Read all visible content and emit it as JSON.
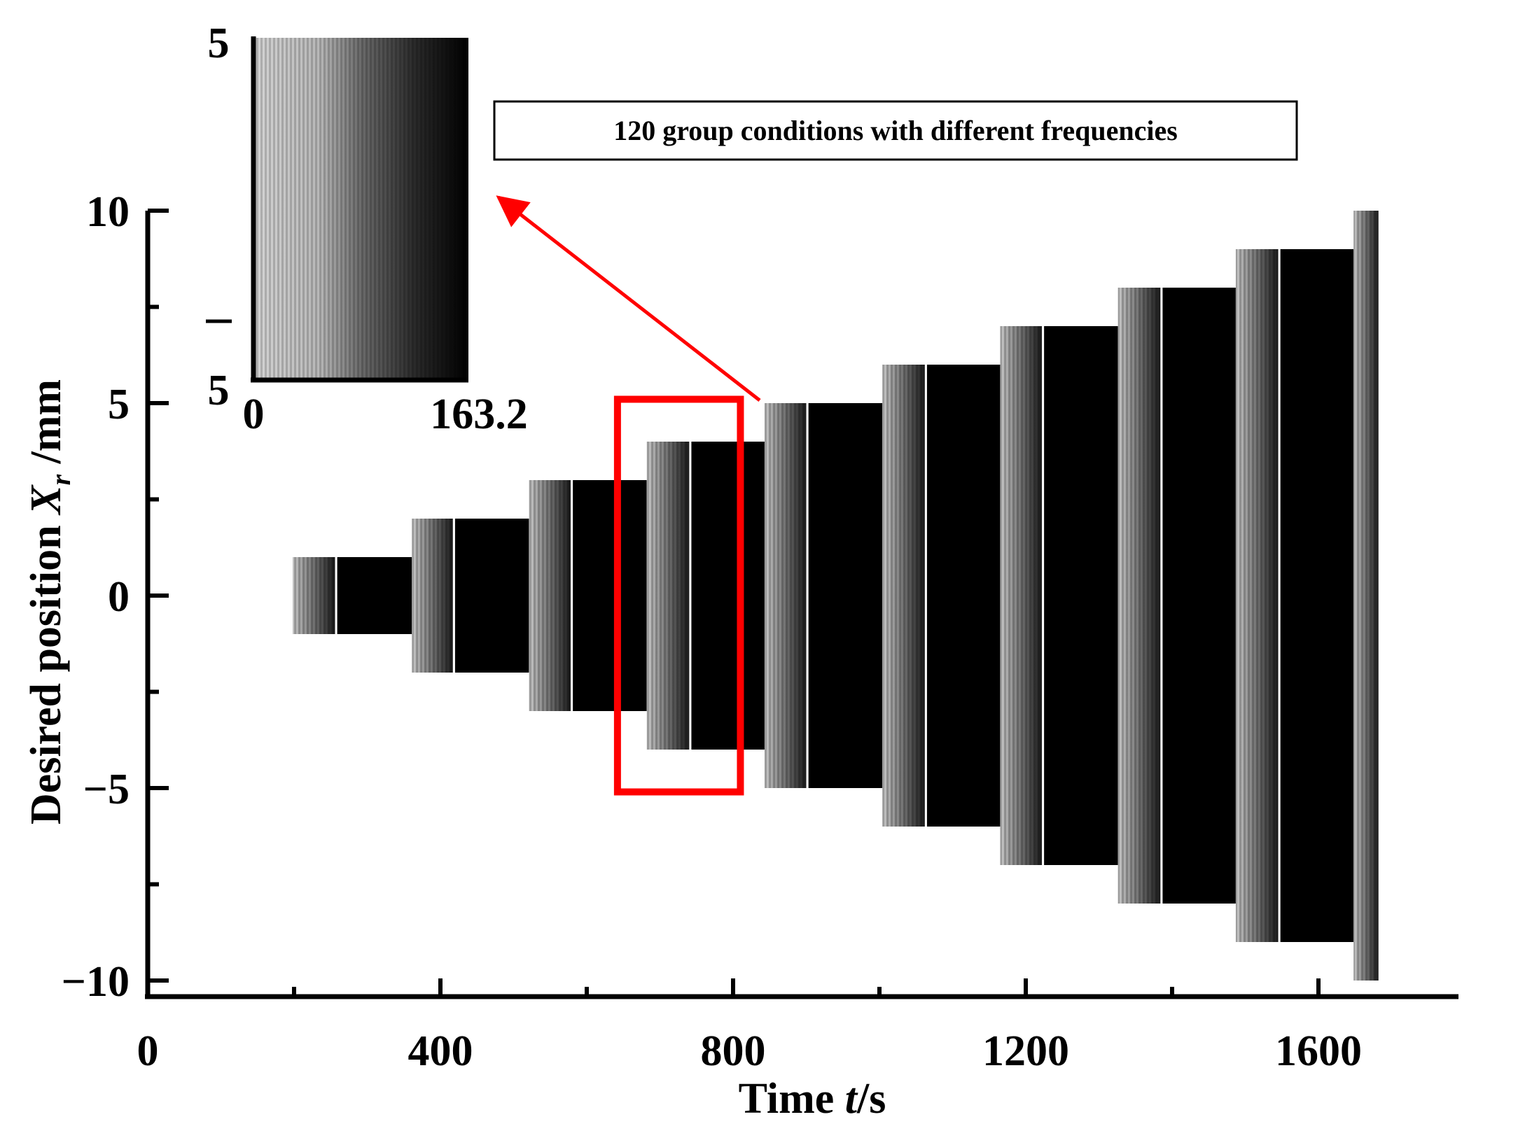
{
  "chart_data": {
    "type": "area",
    "title": "",
    "xlabel_main": "Time ",
    "xlabel_var": "t",
    "xlabel_unit": "/s",
    "ylabel_main": "Desired position  ",
    "ylabel_var": "X",
    "ylabel_sub": "r",
    "ylabel_unit": " /mm",
    "xlim": [
      0,
      1700
    ],
    "ylim": [
      -10,
      10
    ],
    "x_ticks": [
      0,
      400,
      800,
      1200,
      1600
    ],
    "x_tick_labels": [
      "0",
      "400",
      "800",
      "1200",
      "1600"
    ],
    "y_ticks": [
      -10,
      -5,
      0,
      5,
      10
    ],
    "y_tick_labels": [
      "−10",
      "−5",
      "0",
      "5",
      "10"
    ],
    "grid": false,
    "segments": [
      {
        "t_start": 198,
        "t_end": 256,
        "t_solid": 259,
        "t_stop": 361,
        "amplitude": 1
      },
      {
        "t_start": 361,
        "t_end": 417,
        "t_solid": 420,
        "t_stop": 521,
        "amplitude": 2
      },
      {
        "t_start": 521,
        "t_end": 578,
        "t_solid": 581,
        "t_stop": 682,
        "amplitude": 3
      },
      {
        "t_start": 682,
        "t_end": 740,
        "t_solid": 743,
        "t_stop": 843,
        "amplitude": 4
      },
      {
        "t_start": 843,
        "t_end": 900,
        "t_solid": 903,
        "t_stop": 1004,
        "amplitude": 5
      },
      {
        "t_start": 1004,
        "t_end": 1062,
        "t_solid": 1065,
        "t_stop": 1165,
        "amplitude": 6
      },
      {
        "t_start": 1165,
        "t_end": 1222,
        "t_solid": 1225,
        "t_stop": 1326,
        "amplitude": 7
      },
      {
        "t_start": 1326,
        "t_end": 1384,
        "t_solid": 1387,
        "t_stop": 1487,
        "amplitude": 8
      },
      {
        "t_start": 1487,
        "t_end": 1545,
        "t_solid": 1548,
        "t_stop": 1648,
        "amplitude": 9
      },
      {
        "t_start": 1648,
        "t_end": 1682,
        "t_solid": 1682,
        "t_stop": 1682,
        "amplitude": 10
      }
    ],
    "highlight_box": {
      "x_range": [
        642,
        810
      ],
      "y_range": [
        -5.1,
        5.1
      ],
      "color": "#ff0000"
    },
    "annotation": {
      "text": "120 group conditions with different frequencies"
    },
    "inset": {
      "x_tick_labels": [
        "0",
        "163.2"
      ],
      "y_top_label": "5",
      "y_mid_label": "–",
      "y_bottom_label": "5"
    }
  },
  "colors": {
    "trace": "#000000",
    "highlight": "#ff0000",
    "axis": "#000000",
    "background": "#ffffff"
  }
}
